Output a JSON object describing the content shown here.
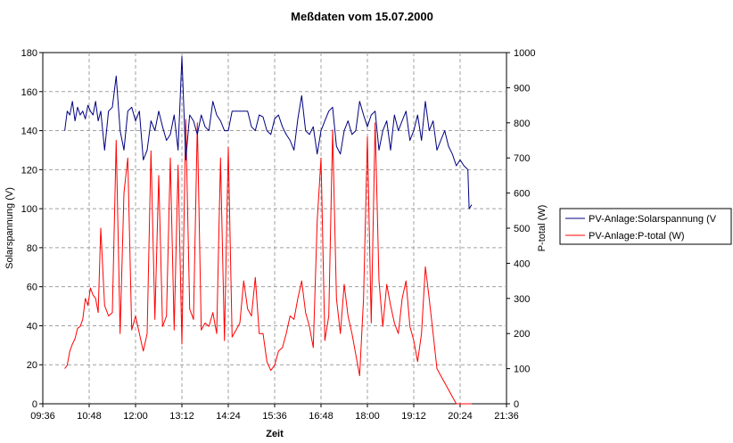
{
  "chart_data": {
    "type": "line",
    "title": "Meßdaten vom 15.07.2000",
    "xlabel": "Zeit",
    "ylabel_left": "Solarspannung (V)",
    "ylabel_right": "P-total (W)",
    "x_tick_labels": [
      "09:36",
      "10:48",
      "12:00",
      "13:12",
      "14:24",
      "15:36",
      "16:48",
      "18:00",
      "19:12",
      "20:24",
      "21:36"
    ],
    "xlim_minutes": [
      576,
      1296
    ],
    "ylim_left": [
      0,
      180
    ],
    "ylim_right": [
      0,
      1000
    ],
    "y_left_ticks": [
      0,
      20,
      40,
      60,
      80,
      100,
      120,
      140,
      160,
      180
    ],
    "y_right_ticks": [
      0,
      100,
      200,
      300,
      400,
      500,
      600,
      700,
      800,
      900,
      1000
    ],
    "grid": true,
    "legend_position": "right",
    "series": [
      {
        "name": "PV-Anlage:Solarspannung (V",
        "axis": "left",
        "color": "#000080",
        "x_minutes": [
          610,
          614,
          618,
          622,
          626,
          630,
          634,
          638,
          642,
          646,
          650,
          654,
          658,
          662,
          666,
          672,
          678,
          684,
          690,
          696,
          702,
          708,
          714,
          720,
          726,
          732,
          738,
          744,
          750,
          756,
          762,
          768,
          774,
          780,
          786,
          792,
          798,
          804,
          810,
          816,
          822,
          828,
          834,
          840,
          846,
          852,
          858,
          864,
          870,
          876,
          882,
          888,
          894,
          900,
          906,
          912,
          918,
          924,
          930,
          936,
          942,
          948,
          954,
          960,
          966,
          972,
          978,
          984,
          990,
          996,
          1002,
          1008,
          1014,
          1020,
          1026,
          1032,
          1038,
          1044,
          1050,
          1056,
          1062,
          1068,
          1074,
          1080,
          1086,
          1092,
          1098,
          1104,
          1110,
          1116,
          1122,
          1128,
          1134,
          1140,
          1146,
          1152,
          1158,
          1164,
          1170,
          1176,
          1182,
          1188,
          1194,
          1200,
          1206,
          1212,
          1218,
          1224,
          1230,
          1236,
          1238,
          1242
        ],
        "values": [
          140,
          150,
          148,
          155,
          145,
          152,
          148,
          150,
          146,
          153,
          150,
          148,
          155,
          145,
          150,
          130,
          150,
          152,
          168,
          140,
          130,
          150,
          152,
          145,
          150,
          125,
          130,
          145,
          140,
          150,
          142,
          135,
          138,
          148,
          130,
          178,
          125,
          148,
          145,
          138,
          148,
          142,
          140,
          155,
          148,
          145,
          140,
          140,
          150,
          150,
          150,
          150,
          150,
          142,
          140,
          148,
          147,
          140,
          138,
          146,
          148,
          142,
          138,
          135,
          130,
          146,
          158,
          140,
          138,
          142,
          128,
          140,
          145,
          150,
          152,
          132,
          128,
          140,
          145,
          138,
          140,
          155,
          148,
          142,
          148,
          150,
          130,
          140,
          145,
          130,
          148,
          140,
          145,
          150,
          135,
          140,
          148,
          135,
          155,
          140,
          145,
          130,
          135,
          140,
          132,
          128,
          122,
          125,
          122,
          120,
          100,
          102
        ]
      },
      {
        "name": "PV-Anlage:P-total (W)",
        "axis": "right",
        "color": "#ff0000",
        "x_minutes": [
          610,
          614,
          618,
          622,
          626,
          630,
          634,
          638,
          642,
          646,
          650,
          654,
          658,
          662,
          666,
          672,
          678,
          684,
          690,
          696,
          702,
          708,
          714,
          720,
          726,
          732,
          738,
          744,
          750,
          756,
          762,
          768,
          774,
          780,
          786,
          792,
          798,
          804,
          810,
          816,
          822,
          828,
          834,
          840,
          846,
          852,
          858,
          864,
          870,
          876,
          882,
          888,
          894,
          900,
          906,
          912,
          918,
          924,
          930,
          936,
          942,
          948,
          954,
          960,
          966,
          972,
          978,
          984,
          990,
          996,
          1002,
          1008,
          1014,
          1020,
          1026,
          1032,
          1038,
          1044,
          1050,
          1056,
          1062,
          1068,
          1074,
          1080,
          1086,
          1092,
          1098,
          1104,
          1110,
          1116,
          1122,
          1128,
          1134,
          1140,
          1146,
          1152,
          1158,
          1164,
          1170,
          1176,
          1182,
          1188,
          1194,
          1200,
          1206,
          1212,
          1218,
          1224,
          1230,
          1236,
          1238,
          1242
        ],
        "values": [
          100,
          110,
          150,
          170,
          185,
          215,
          220,
          240,
          300,
          280,
          330,
          310,
          300,
          260,
          500,
          280,
          250,
          260,
          750,
          200,
          600,
          700,
          210,
          250,
          200,
          150,
          200,
          720,
          240,
          650,
          220,
          250,
          700,
          210,
          680,
          170,
          810,
          270,
          240,
          800,
          210,
          230,
          220,
          260,
          200,
          700,
          180,
          730,
          190,
          210,
          230,
          350,
          270,
          250,
          360,
          200,
          200,
          120,
          95,
          110,
          150,
          160,
          200,
          250,
          240,
          300,
          350,
          260,
          220,
          160,
          520,
          700,
          180,
          250,
          780,
          300,
          200,
          340,
          250,
          200,
          140,
          80,
          300,
          760,
          230,
          800,
          350,
          220,
          340,
          280,
          230,
          200,
          300,
          350,
          220,
          180,
          120,
          200,
          390,
          300,
          200,
          100,
          80,
          60,
          40,
          20,
          0,
          0,
          0,
          0,
          0,
          0
        ]
      }
    ]
  }
}
